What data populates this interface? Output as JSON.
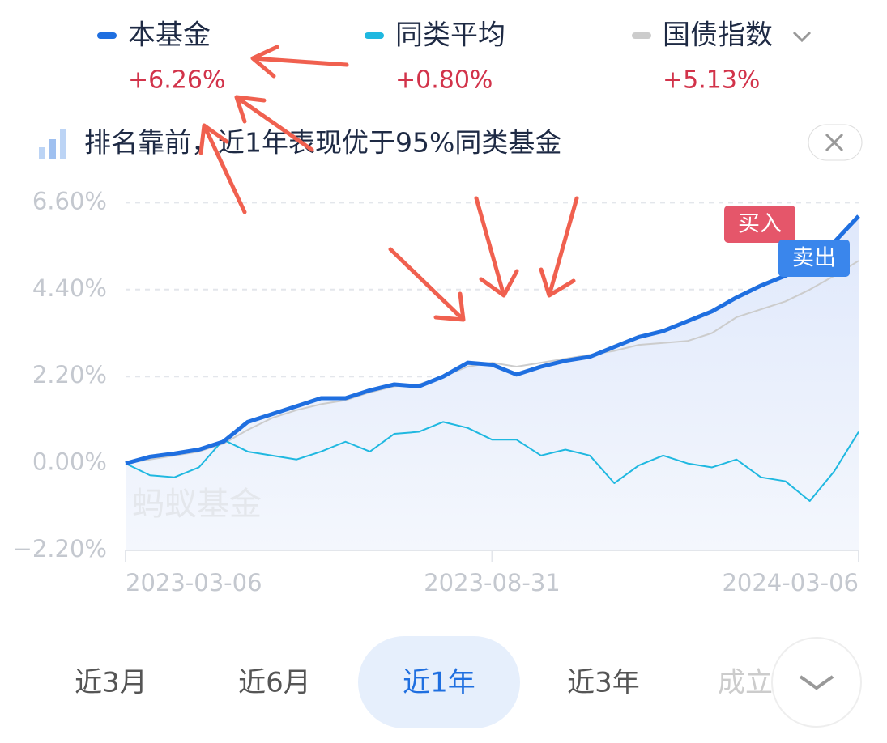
{
  "banner": "排名靠前，近1年表现优于95%同类基金",
  "watermark": "蚂蚁基金",
  "badges": {
    "buy": "买入",
    "sell": "卖出"
  },
  "tabs": [
    "近3月",
    "近6月",
    "近1年",
    "近3年",
    "成立"
  ],
  "active_tab": 2,
  "chart_data": {
    "type": "line",
    "categories": [
      "2023-03-06",
      null,
      null,
      null,
      null,
      null,
      null,
      null,
      null,
      null,
      null,
      null,
      null,
      null,
      null,
      "2023-08-31",
      null,
      null,
      null,
      null,
      null,
      null,
      null,
      null,
      null,
      null,
      null,
      null,
      null,
      null,
      "2024-03-06"
    ],
    "series": [
      {
        "name": "本基金",
        "color": "#1f6fe0",
        "change": "+6.26%",
        "values": [
          0,
          0.17,
          0.25,
          0.35,
          0.55,
          1.05,
          1.25,
          1.45,
          1.65,
          1.65,
          1.85,
          2.0,
          1.95,
          2.2,
          2.55,
          2.5,
          2.25,
          2.45,
          2.6,
          2.7,
          2.95,
          3.2,
          3.35,
          3.6,
          3.85,
          4.2,
          4.5,
          4.75,
          5.05,
          5.6,
          6.26
        ]
      },
      {
        "name": "同类平均",
        "color": "#1fb8e0",
        "change": "+0.80%",
        "values": [
          0,
          -0.3,
          -0.35,
          -0.1,
          0.6,
          0.3,
          0.2,
          0.1,
          0.3,
          0.55,
          0.3,
          0.75,
          0.8,
          1.05,
          0.9,
          0.6,
          0.6,
          0.2,
          0.35,
          0.2,
          -0.5,
          -0.05,
          0.2,
          0.0,
          -0.1,
          0.1,
          -0.35,
          -0.45,
          -0.95,
          -0.2,
          0.8
        ]
      },
      {
        "name": "国债指数",
        "color": "#cccccc",
        "change": "+5.13%",
        "values": [
          0,
          0.1,
          0.2,
          0.3,
          0.5,
          0.85,
          1.15,
          1.35,
          1.5,
          1.6,
          1.8,
          1.95,
          2.0,
          2.2,
          2.45,
          2.55,
          2.45,
          2.55,
          2.65,
          2.75,
          2.85,
          3.0,
          3.05,
          3.1,
          3.3,
          3.7,
          3.9,
          4.1,
          4.4,
          4.75,
          5.13
        ]
      }
    ],
    "ylim": [
      -2.2,
      7.1
    ],
    "yticks": [
      {
        "value": 6.6,
        "label": "6.60%"
      },
      {
        "value": 4.4,
        "label": "4.40%"
      },
      {
        "value": 2.2,
        "label": "2.20%"
      },
      {
        "value": 0,
        "label": "0.00%"
      },
      {
        "value": -2.2,
        "label": "−2.20%"
      }
    ],
    "grid": true
  }
}
